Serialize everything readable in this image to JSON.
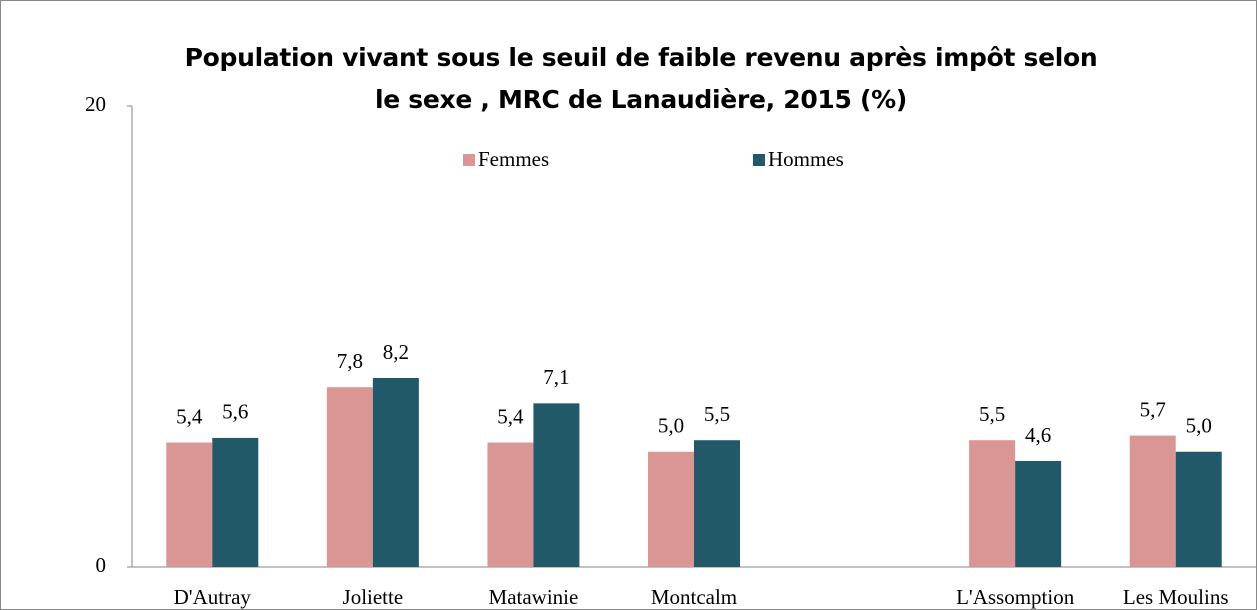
{
  "chart_data": {
    "type": "bar",
    "title": "Population vivant sous le seuil de faible revenu après impôt selon\nle sexe , MRC de Lanaudière, 2015 (%)",
    "categories": [
      "D'Autray",
      "Joliette",
      "Matawinie",
      "Montcalm",
      null,
      "L'Assomption",
      "Les Moulins"
    ],
    "series": [
      {
        "name": "Femmes",
        "color": "#d99694",
        "values": [
          5.4,
          7.8,
          5.4,
          5.0,
          null,
          5.5,
          5.7
        ],
        "value_labels": [
          "5,4",
          "7,8",
          "5,4",
          "5,0",
          null,
          "5,5",
          "5,7"
        ]
      },
      {
        "name": "Hommes",
        "color": "#215968",
        "values": [
          5.6,
          8.2,
          7.1,
          5.5,
          null,
          4.6,
          5.0
        ],
        "value_labels": [
          "5,6",
          "8,2",
          "7,1",
          "5,5",
          null,
          "4,6",
          "5,0"
        ]
      }
    ],
    "ylim": [
      0,
      20
    ],
    "yticks": [
      0,
      20
    ],
    "legend": "top"
  }
}
